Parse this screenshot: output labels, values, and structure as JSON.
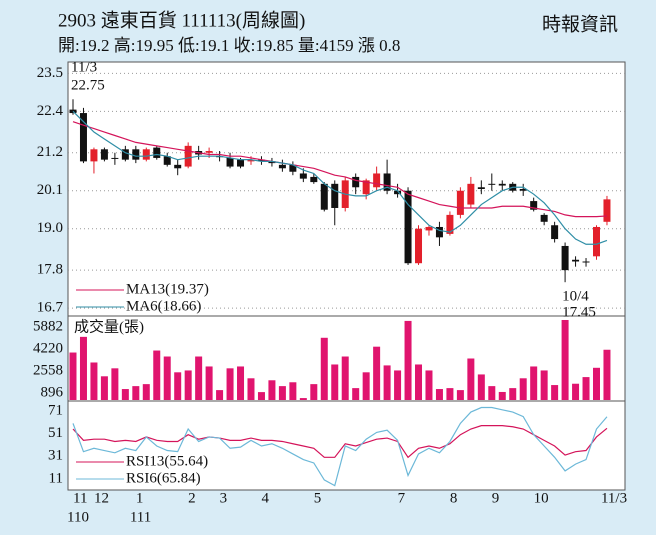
{
  "header": {
    "title": "2903 遠東百貨 111113(周線圖)",
    "source": "時報資訊",
    "quote": "開:19.2 高:19.95 低:19.1 收:19.85 量:4159 漲 0.8"
  },
  "chart_data": [
    {
      "type": "candlestick",
      "up_color": "#e3202b",
      "down_color": "#111111",
      "grid": true,
      "legend": "lower left",
      "ylim": [
        16.5,
        23.8
      ],
      "yticks": [
        23.5,
        22.4,
        21.2,
        20.1,
        {
          "value": 19,
          "label": "19.0"
        },
        17.8,
        16.7
      ],
      "open": [
        22.45,
        22.35,
        20.95,
        21.3,
        21.05,
        21.3,
        21.3,
        21.0,
        21.35,
        21.1,
        20.85,
        20.8,
        21.25,
        21.2,
        21.1,
        21.05,
        21.0,
        20.95,
        21.0,
        20.95,
        20.85,
        20.85,
        20.6,
        20.5,
        20.3,
        20.3,
        19.6,
        20.5,
        20.0,
        20.2,
        20.6,
        20.1,
        20.1,
        18.0,
        18.95,
        19.05,
        18.85,
        19.4,
        19.7,
        20.2,
        20.3,
        20.3,
        20.3,
        20.15,
        19.8,
        19.4,
        19.1,
        18.5,
        18.1,
        18.05,
        18.2,
        19.2
      ],
      "high": [
        22.75,
        22.5,
        21.35,
        21.35,
        21.2,
        21.4,
        21.4,
        21.35,
        21.4,
        21.2,
        21.0,
        21.5,
        21.4,
        21.35,
        21.25,
        21.2,
        21.05,
        21.1,
        21.1,
        21.05,
        21.0,
        20.95,
        20.75,
        20.6,
        20.35,
        20.4,
        20.5,
        20.6,
        20.45,
        20.8,
        21.0,
        20.3,
        20.2,
        19.1,
        19.1,
        19.2,
        19.5,
        20.2,
        20.5,
        20.4,
        20.6,
        20.4,
        20.35,
        20.3,
        19.9,
        19.45,
        19.2,
        18.6,
        18.2,
        18.15,
        19.1,
        19.95
      ],
      "low": [
        22.3,
        20.9,
        20.6,
        20.95,
        20.85,
        20.95,
        20.9,
        20.95,
        21.0,
        20.8,
        20.55,
        20.75,
        21.0,
        21.05,
        20.95,
        20.75,
        20.75,
        20.85,
        20.85,
        20.8,
        20.65,
        20.55,
        20.35,
        20.3,
        19.5,
        19.1,
        19.5,
        20.0,
        19.85,
        20.1,
        20.0,
        19.9,
        17.95,
        17.95,
        18.8,
        18.5,
        18.8,
        19.3,
        19.6,
        20.0,
        20.1,
        20.1,
        20.05,
        19.95,
        19.5,
        19.1,
        18.6,
        17.45,
        17.9,
        17.9,
        18.1,
        19.1
      ],
      "close": [
        22.35,
        20.95,
        21.3,
        21.0,
        21.05,
        21.0,
        21.0,
        21.3,
        21.05,
        20.85,
        20.75,
        21.4,
        21.15,
        21.25,
        21.1,
        20.8,
        20.8,
        21.0,
        20.95,
        20.9,
        20.75,
        20.65,
        20.45,
        20.35,
        19.55,
        19.6,
        20.4,
        20.2,
        20.4,
        20.6,
        20.1,
        20.0,
        18.0,
        19.0,
        19.05,
        18.75,
        19.4,
        20.1,
        20.3,
        20.15,
        20.3,
        20.25,
        20.1,
        20.1,
        19.55,
        19.2,
        18.7,
        17.8,
        18.05,
        18.05,
        19.05,
        19.85
      ],
      "series": [
        {
          "name": "MA13(19.37)",
          "color": "#d4145a",
          "values": [
            22.1,
            22.0,
            21.9,
            21.8,
            21.7,
            21.6,
            21.5,
            21.45,
            21.4,
            21.35,
            21.3,
            21.25,
            21.2,
            21.15,
            21.15,
            21.1,
            21.1,
            21.05,
            21.0,
            20.95,
            20.9,
            20.85,
            20.8,
            20.75,
            20.65,
            20.55,
            20.5,
            20.4,
            20.35,
            20.3,
            20.25,
            20.2,
            20.0,
            19.9,
            19.8,
            19.7,
            19.65,
            19.6,
            19.6,
            19.6,
            19.6,
            19.65,
            19.65,
            19.65,
            19.6,
            19.55,
            19.5,
            19.4,
            19.35,
            19.35,
            19.35,
            19.37
          ]
        },
        {
          "name": "MA6(18.66)",
          "color": "#2f8ea6",
          "values": [
            22.4,
            22.1,
            21.8,
            21.6,
            21.4,
            21.2,
            21.1,
            21.1,
            21.15,
            21.1,
            21.0,
            21.05,
            21.1,
            21.1,
            21.1,
            21.05,
            21.0,
            21.0,
            20.95,
            20.95,
            20.9,
            20.85,
            20.7,
            20.6,
            20.3,
            20.1,
            20.0,
            19.95,
            19.95,
            20.1,
            20.2,
            20.1,
            19.7,
            19.4,
            19.1,
            18.95,
            18.9,
            19.1,
            19.4,
            19.7,
            19.9,
            20.1,
            20.2,
            20.2,
            20.0,
            19.75,
            19.4,
            19.0,
            18.7,
            18.55,
            18.55,
            18.66
          ]
        }
      ],
      "annotations": [
        {
          "date": "11/3",
          "value": 22.75,
          "at": "high"
        },
        {
          "date": "10/4",
          "value": 17.45,
          "at": "low"
        }
      ]
    },
    {
      "type": "bar",
      "title": "成交量(張)",
      "color": "#e0146e",
      "ylim": [
        375,
        6550
      ],
      "yticks": [
        5882,
        4220,
        2558,
        896
      ],
      "values": [
        3950,
        5130,
        3200,
        2160,
        2760,
        1200,
        1420,
        1570,
        4100,
        3650,
        2460,
        2600,
        3650,
        2900,
        1120,
        2760,
        2900,
        2010,
        970,
        1860,
        1420,
        1710,
        520,
        1570,
        5060,
        3050,
        3650,
        1270,
        2460,
        4390,
        2980,
        2600,
        6330,
        3050,
        2600,
        1200,
        1270,
        1120,
        3500,
        2300,
        1420,
        980,
        1270,
        2010,
        2900,
        2600,
        1500,
        6400,
        1600,
        2100,
        2800,
        4159
      ]
    },
    {
      "type": "line",
      "legend": "lower left",
      "ylim": [
        2,
        78
      ],
      "yticks": [
        71,
        51,
        31,
        11
      ],
      "categories": [
        "11",
        null,
        "12",
        null,
        null,
        null,
        "1",
        null,
        null,
        null,
        null,
        "2",
        null,
        null,
        "3",
        null,
        null,
        null,
        "4",
        null,
        null,
        null,
        null,
        "5",
        null,
        null,
        null,
        null,
        null,
        null,
        null,
        "7",
        null,
        null,
        null,
        null,
        "8",
        null,
        null,
        null,
        "9",
        null,
        null,
        null,
        "10",
        null,
        null,
        null,
        null,
        null,
        null,
        "11/3"
      ],
      "year_labels": [
        "110",
        null,
        null,
        null,
        null,
        null,
        "111",
        null,
        null,
        null,
        null,
        null,
        null,
        null,
        null,
        null,
        null,
        null,
        null,
        null,
        null,
        null,
        null,
        null,
        null,
        null,
        null,
        null,
        null,
        null,
        null,
        null,
        null,
        null,
        null,
        null,
        null,
        null,
        null,
        null,
        null,
        null,
        null,
        null,
        null,
        null,
        null,
        null,
        null,
        null,
        null,
        null
      ],
      "series": [
        {
          "name": "RSI13(55.64)",
          "color": "#d4145a",
          "values": [
            55,
            45,
            46,
            46,
            44,
            45,
            44,
            48,
            45,
            44,
            44,
            50,
            46,
            48,
            47,
            45,
            45,
            47,
            45,
            45,
            44,
            42,
            40,
            38,
            30,
            30,
            42,
            40,
            43,
            46,
            47,
            44,
            30,
            38,
            40,
            38,
            42,
            50,
            55,
            58,
            58,
            58,
            57,
            55,
            50,
            45,
            40,
            32,
            35,
            36,
            48,
            55.64
          ]
        },
        {
          "name": "RSI6(65.84)",
          "color": "#6cb8d8",
          "values": [
            60,
            35,
            38,
            36,
            34,
            38,
            36,
            48,
            40,
            36,
            35,
            55,
            44,
            48,
            47,
            38,
            39,
            45,
            40,
            42,
            38,
            33,
            28,
            25,
            10,
            5,
            40,
            36,
            46,
            52,
            54,
            45,
            14,
            33,
            38,
            34,
            44,
            60,
            70,
            74,
            74,
            72,
            70,
            66,
            50,
            40,
            30,
            18,
            24,
            28,
            55,
            65.84
          ]
        }
      ]
    }
  ]
}
